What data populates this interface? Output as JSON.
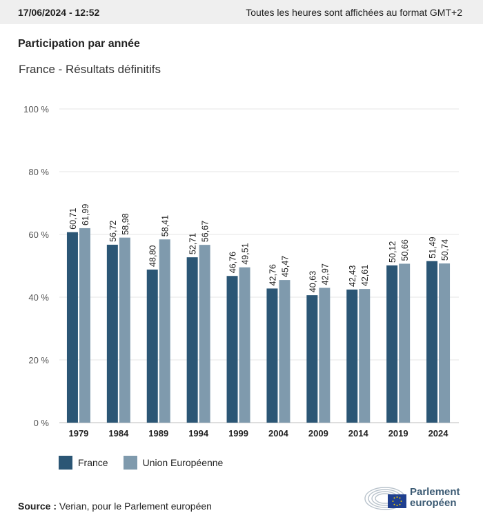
{
  "header": {
    "date": "17/06/2024 - 12:52",
    "timezone_note": "Toutes les heures sont affichées au format GMT+2"
  },
  "title": "Participation par année",
  "subtitle": "France - Résultats définitifs",
  "colors": {
    "france": "#2b5675",
    "eu": "#7f9aad",
    "grid": "#e6e6e6"
  },
  "chart_data": {
    "type": "bar",
    "categories": [
      "1979",
      "1984",
      "1989",
      "1994",
      "1999",
      "2004",
      "2009",
      "2014",
      "2019",
      "2024"
    ],
    "series": [
      {
        "name": "France",
        "values": [
          60.71,
          56.72,
          48.8,
          52.71,
          46.76,
          42.76,
          40.63,
          42.43,
          50.12,
          51.49
        ],
        "labels": [
          "60,71",
          "56,72",
          "48,80",
          "52,71",
          "46,76",
          "42,76",
          "40,63",
          "42,43",
          "50,12",
          "51,49"
        ]
      },
      {
        "name": "Union Européenne",
        "values": [
          61.99,
          58.98,
          58.41,
          56.67,
          49.51,
          45.47,
          42.97,
          42.61,
          50.66,
          50.74
        ],
        "labels": [
          "61,99",
          "58,98",
          "58,41",
          "56,67",
          "49,51",
          "45,47",
          "42,97",
          "42,61",
          "50,66",
          "50,74"
        ]
      }
    ],
    "yticks": [
      "0 %",
      "20 %",
      "40 %",
      "60 %",
      "80 %",
      "100 %"
    ],
    "ylim": [
      0,
      100
    ],
    "grid": true,
    "legend_position": "bottom-left"
  },
  "legend": {
    "france": "France",
    "eu": "Union Européenne"
  },
  "source": {
    "label": "Source :",
    "text": "Verian, pour le Parlement européen"
  },
  "logo": {
    "line1": "Parlement",
    "line2": "européen"
  }
}
